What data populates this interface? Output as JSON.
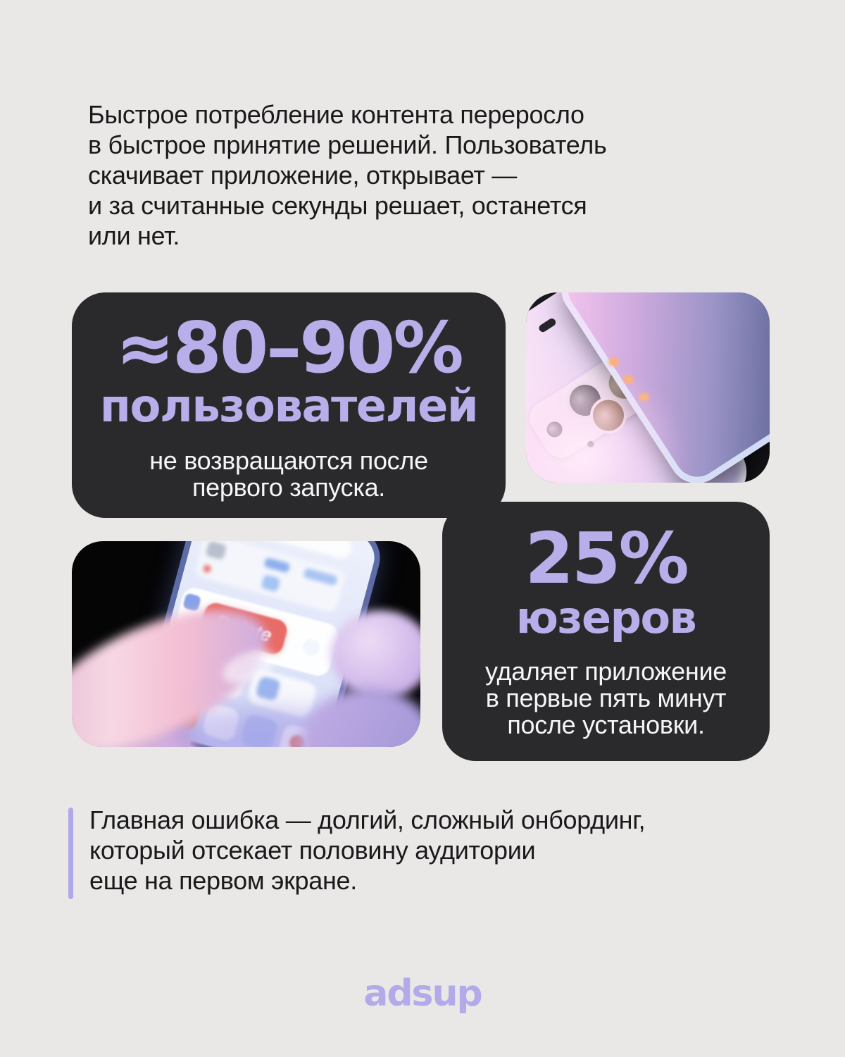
{
  "colors": {
    "background": "#e9e8e6",
    "card_background": "#2a292c",
    "accent_purple": "#b7aeea",
    "text_dark": "#1a191b",
    "text_light": "#f6f6f6",
    "quote_bar": "#b1a8e8",
    "delete_red": "#e96b66",
    "logo_purple": "#b3aaea"
  },
  "intro": {
    "lines": [
      "Быстрое потребление контента переросло",
      "в быстрое принятие решений. Пользователь",
      "скачивает приложение, открывает —",
      "и за считанные секунды решает, останется",
      "или нет."
    ]
  },
  "stats": {
    "big": {
      "value": "≈80–90%",
      "label": "пользователей",
      "description_lines": [
        "не возвращаются после",
        "первого запуска."
      ]
    },
    "small": {
      "value": "25%",
      "label": "юзеров",
      "description_lines": [
        "удаляет приложение",
        "в первые пять минут",
        "после установки."
      ]
    }
  },
  "images": {
    "delete_photo": {
      "button_label": "Delete"
    }
  },
  "quote": {
    "lines": [
      "Главная ошибка — долгий, сложный онбординг,",
      "который отсекает половину аудитории",
      "еще на первом экране."
    ]
  },
  "footer": {
    "logo_text": "adsup"
  }
}
